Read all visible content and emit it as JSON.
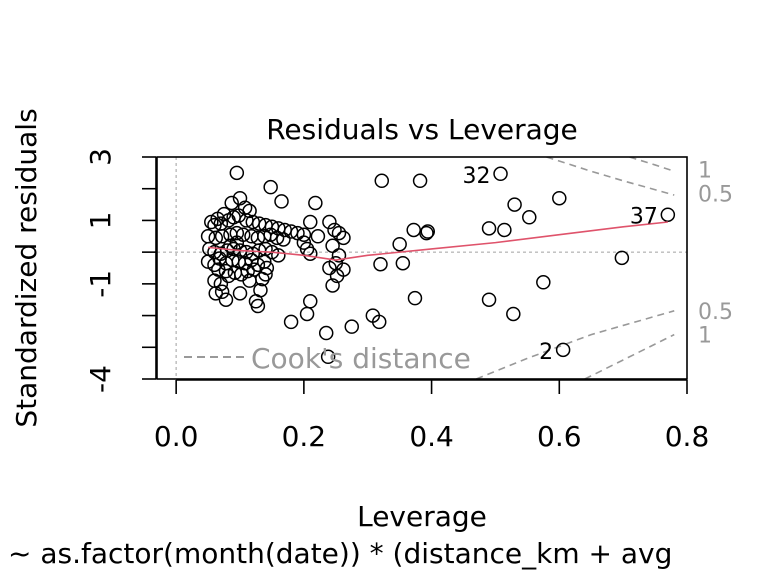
{
  "chart_data": {
    "type": "scatter",
    "title": "Residuals vs Leverage",
    "xlabel": "Leverage",
    "ylabel": "Standardized residuals",
    "subtitle": "~ as.factor(month(date)) * (distance_km + avg",
    "xlim": [
      -0.03,
      0.8
    ],
    "ylim": [
      -4,
      3
    ],
    "x_ticks": [
      0.0,
      0.2,
      0.4,
      0.6,
      0.8
    ],
    "x_tick_labels": [
      "0.0",
      "0.2",
      "0.4",
      "0.6",
      "0.8"
    ],
    "y_ticks": [
      3,
      2,
      1,
      0,
      -1,
      -2,
      -3,
      -4
    ],
    "y_tick_labels": [
      "3",
      "",
      "1",
      "",
      "-1",
      "",
      "",
      "-4"
    ],
    "legend": {
      "label": "Cook's distance",
      "position": "bottom-left"
    },
    "cooks_contour_labels": [
      {
        "text": "1",
        "y": 2.6
      },
      {
        "text": "0.5",
        "y": 1.85
      },
      {
        "text": "0.5",
        "y": -1.85
      },
      {
        "text": "1",
        "y": -2.6
      }
    ],
    "colors": {
      "points": "#000000",
      "smoother": "#df536b",
      "contours": "#999999",
      "reference": "#bbbbbb"
    },
    "labeled_points": [
      {
        "label": "32",
        "x": 0.508,
        "y": 2.47
      },
      {
        "label": "37",
        "x": 0.77,
        "y": 1.18
      },
      {
        "label": "2",
        "x": 0.606,
        "y": -3.08
      }
    ],
    "points": [
      [
        0.095,
        2.5
      ],
      [
        0.148,
        2.05
      ],
      [
        0.165,
        1.6
      ],
      [
        0.1,
        1.7
      ],
      [
        0.108,
        1.4
      ],
      [
        0.115,
        1.3
      ],
      [
        0.087,
        1.55
      ],
      [
        0.075,
        1.2
      ],
      [
        0.065,
        1.05
      ],
      [
        0.055,
        0.95
      ],
      [
        0.06,
        0.85
      ],
      [
        0.07,
        0.9
      ],
      [
        0.082,
        1.0
      ],
      [
        0.09,
        1.1
      ],
      [
        0.098,
        1.15
      ],
      [
        0.11,
        1.0
      ],
      [
        0.12,
        0.95
      ],
      [
        0.13,
        0.9
      ],
      [
        0.14,
        0.85
      ],
      [
        0.15,
        0.8
      ],
      [
        0.16,
        0.75
      ],
      [
        0.17,
        0.7
      ],
      [
        0.18,
        0.65
      ],
      [
        0.19,
        0.6
      ],
      [
        0.2,
        0.55
      ],
      [
        0.05,
        0.5
      ],
      [
        0.062,
        0.45
      ],
      [
        0.072,
        0.5
      ],
      [
        0.085,
        0.55
      ],
      [
        0.095,
        0.6
      ],
      [
        0.105,
        0.55
      ],
      [
        0.118,
        0.5
      ],
      [
        0.128,
        0.45
      ],
      [
        0.138,
        0.5
      ],
      [
        0.148,
        0.55
      ],
      [
        0.158,
        0.45
      ],
      [
        0.168,
        0.4
      ],
      [
        0.052,
        0.1
      ],
      [
        0.06,
        0.0
      ],
      [
        0.07,
        -0.05
      ],
      [
        0.08,
        0.05
      ],
      [
        0.09,
        0.1
      ],
      [
        0.1,
        0.05
      ],
      [
        0.11,
        0.0
      ],
      [
        0.12,
        -0.05
      ],
      [
        0.13,
        0.05
      ],
      [
        0.14,
        0.1
      ],
      [
        0.15,
        0.0
      ],
      [
        0.16,
        -0.1
      ],
      [
        0.05,
        -0.3
      ],
      [
        0.06,
        -0.4
      ],
      [
        0.068,
        -0.2
      ],
      [
        0.078,
        -0.35
      ],
      [
        0.088,
        -0.25
      ],
      [
        0.098,
        -0.3
      ],
      [
        0.108,
        -0.35
      ],
      [
        0.118,
        -0.25
      ],
      [
        0.128,
        -0.4
      ],
      [
        0.138,
        -0.3
      ],
      [
        0.06,
        -0.9
      ],
      [
        0.07,
        -1.0
      ],
      [
        0.062,
        -1.3
      ],
      [
        0.072,
        -1.25
      ],
      [
        0.078,
        -1.5
      ],
      [
        0.1,
        -1.3
      ],
      [
        0.125,
        -1.55
      ],
      [
        0.128,
        -1.7
      ],
      [
        0.132,
        -1.2
      ],
      [
        0.135,
        -0.85
      ],
      [
        0.082,
        -0.75
      ],
      [
        0.092,
        -0.65
      ],
      [
        0.102,
        -0.7
      ],
      [
        0.112,
        -0.6
      ],
      [
        0.122,
        -0.55
      ],
      [
        0.142,
        -0.5
      ],
      [
        0.085,
        0.2
      ],
      [
        0.095,
        0.3
      ],
      [
        0.078,
        -0.6
      ],
      [
        0.066,
        -0.55
      ],
      [
        0.115,
        -0.9
      ],
      [
        0.14,
        -0.7
      ],
      [
        0.21,
        0.95
      ],
      [
        0.218,
        1.55
      ],
      [
        0.222,
        0.5
      ],
      [
        0.2,
        0.3
      ],
      [
        0.205,
        0.1
      ],
      [
        0.21,
        -0.05
      ],
      [
        0.24,
        0.95
      ],
      [
        0.248,
        0.7
      ],
      [
        0.255,
        0.6
      ],
      [
        0.262,
        0.45
      ],
      [
        0.245,
        0.2
      ],
      [
        0.255,
        -0.1
      ],
      [
        0.25,
        -0.35
      ],
      [
        0.24,
        -0.5
      ],
      [
        0.262,
        -0.55
      ],
      [
        0.252,
        -0.75
      ],
      [
        0.245,
        -1.05
      ],
      [
        0.21,
        -1.55
      ],
      [
        0.205,
        -1.95
      ],
      [
        0.18,
        -2.2
      ],
      [
        0.235,
        -2.55
      ],
      [
        0.238,
        -3.3
      ],
      [
        0.275,
        -2.35
      ],
      [
        0.308,
        -2.0
      ],
      [
        0.318,
        -2.2
      ],
      [
        0.32,
        -0.38
      ],
      [
        0.355,
        -0.35
      ],
      [
        0.322,
        2.25
      ],
      [
        0.382,
        2.25
      ],
      [
        0.372,
        0.7
      ],
      [
        0.35,
        0.25
      ],
      [
        0.392,
        0.6
      ],
      [
        0.394,
        0.65
      ],
      [
        0.374,
        -1.45
      ],
      [
        0.49,
        -1.5
      ],
      [
        0.528,
        -1.95
      ],
      [
        0.49,
        0.75
      ],
      [
        0.514,
        0.7
      ],
      [
        0.53,
        1.5
      ],
      [
        0.553,
        1.1
      ],
      [
        0.6,
        1.7
      ],
      [
        0.575,
        -0.95
      ],
      [
        0.698,
        -0.18
      ],
      [
        0.508,
        2.47
      ],
      [
        0.77,
        1.18
      ],
      [
        0.606,
        -3.08
      ]
    ],
    "smoother": [
      [
        0.05,
        0.15
      ],
      [
        0.1,
        0.05
      ],
      [
        0.15,
        0.0
      ],
      [
        0.2,
        -0.1
      ],
      [
        0.25,
        -0.25
      ],
      [
        0.3,
        -0.1
      ],
      [
        0.4,
        0.1
      ],
      [
        0.5,
        0.3
      ],
      [
        0.6,
        0.55
      ],
      [
        0.7,
        0.8
      ],
      [
        0.77,
        0.95
      ]
    ],
    "cooks_contours": [
      {
        "level": 0.5,
        "sign": 1,
        "points": [
          [
            0.58,
            3.0
          ],
          [
            0.65,
            2.55
          ],
          [
            0.7,
            2.25
          ],
          [
            0.78,
            1.8
          ]
        ]
      },
      {
        "level": 1,
        "sign": 1,
        "points": [
          [
            0.71,
            3.0
          ],
          [
            0.75,
            2.75
          ],
          [
            0.78,
            2.55
          ]
        ]
      },
      {
        "level": 0.5,
        "sign": -1,
        "points": [
          [
            0.47,
            -4.0
          ],
          [
            0.55,
            -3.35
          ],
          [
            0.65,
            -2.6
          ],
          [
            0.78,
            -1.85
          ]
        ]
      },
      {
        "level": 1,
        "sign": -1,
        "points": [
          [
            0.64,
            -4.0
          ],
          [
            0.7,
            -3.4
          ],
          [
            0.78,
            -2.6
          ]
        ]
      }
    ]
  }
}
